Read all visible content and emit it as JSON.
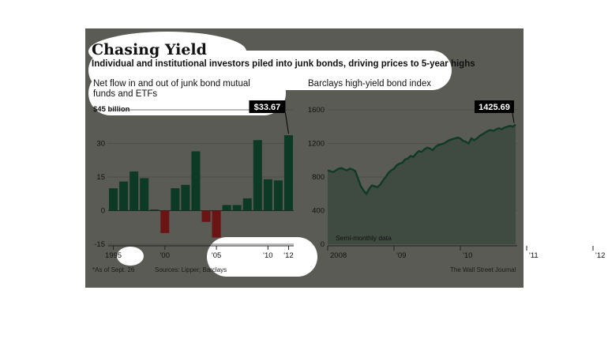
{
  "header": {
    "title": "Chasing Yield",
    "subtitle": "Individual and institutional investors piled into junk bonds, driving prices to 5-year highs"
  },
  "footer": {
    "footnote": "*As of Sept. 26",
    "sources": "Sources: Lipper; Barclays",
    "credit": "The Wall Street Journal"
  },
  "colors": {
    "panel": "#5b5b55",
    "positive_bar": "#0d3a26",
    "negative_bar": "#6b1414",
    "index_line": "#0f3a26",
    "index_area": "#3f4a40"
  },
  "chart_data": [
    {
      "type": "bar",
      "title": "Net flow in and out of junk bond mutual funds and ETFs",
      "unit_label": "$45 billion",
      "categories": [
        "1995",
        "1996",
        "1997",
        "1998",
        "1999",
        "2000",
        "2001",
        "2002",
        "2003",
        "2004",
        "2005",
        "2006",
        "2007",
        "2008",
        "2009",
        "2010",
        "2011",
        "2012*"
      ],
      "values": [
        10.0,
        13.0,
        17.5,
        14.5,
        0.5,
        -10.0,
        10.0,
        11.5,
        26.5,
        -5.0,
        -12.0,
        2.5,
        2.5,
        5.5,
        31.5,
        14.0,
        13.5,
        33.67
      ],
      "ylim": [
        -15,
        45
      ],
      "yticks": [
        45,
        30,
        15,
        0,
        -15
      ],
      "ytick_labels": [
        "$45 billion",
        "30",
        "15",
        "0",
        "-15"
      ],
      "xtick_labels": [
        {
          "category": "1995",
          "label": "1995"
        },
        {
          "category": "2000",
          "label": "'00"
        },
        {
          "category": "2005",
          "label": "'05"
        },
        {
          "category": "2010",
          "label": "'10"
        },
        {
          "category": "2012*",
          "label": "'12"
        }
      ],
      "callout": {
        "category": "2012*",
        "label": "$33.67"
      },
      "grid": true
    },
    {
      "type": "area",
      "title": "Barclays high-yield bond index",
      "note": "Semi-monthly data",
      "x_start": "2008-01",
      "x_step": "half-month",
      "values": [
        880,
        870,
        860,
        880,
        900,
        905,
        890,
        880,
        900,
        890,
        870,
        780,
        690,
        640,
        600,
        660,
        700,
        690,
        680,
        710,
        760,
        800,
        850,
        880,
        900,
        940,
        960,
        970,
        1010,
        1020,
        1050,
        1040,
        1080,
        1110,
        1100,
        1130,
        1150,
        1140,
        1120,
        1160,
        1180,
        1190,
        1200,
        1220,
        1240,
        1250,
        1260,
        1270,
        1260,
        1230,
        1220,
        1200,
        1260,
        1240,
        1260,
        1290,
        1310,
        1330,
        1350,
        1360,
        1350,
        1370,
        1380,
        1370,
        1390,
        1400,
        1410,
        1400,
        1425.69
      ],
      "ylim": [
        0,
        1600
      ],
      "yticks": [
        0,
        400,
        800,
        1200,
        1600
      ],
      "xtick_labels": [
        "2008",
        "'09",
        "'10",
        "'11",
        "'12"
      ],
      "callout": {
        "label": "1425.69"
      },
      "grid": true
    }
  ]
}
